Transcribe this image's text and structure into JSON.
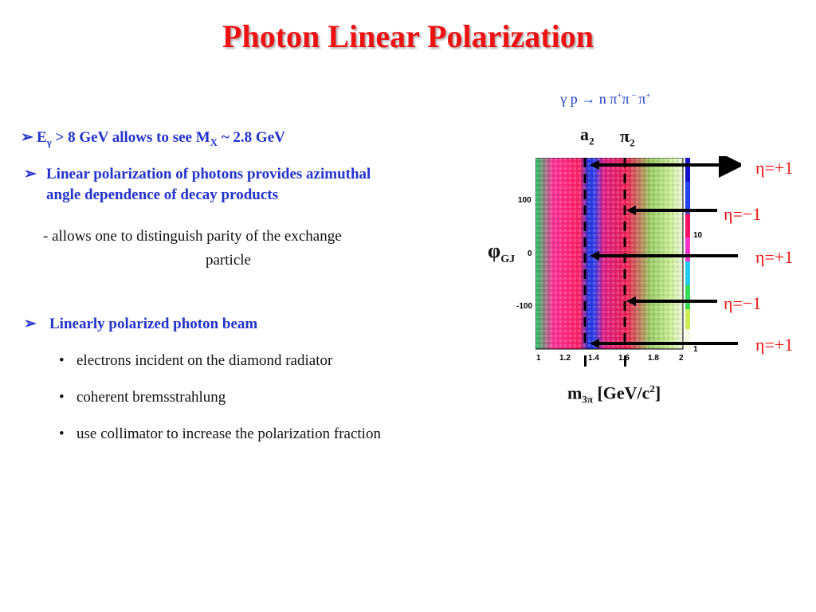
{
  "title": "Photon Linear Polarization",
  "reaction": {
    "text": "γ p  → n π",
    "sup1": "+",
    "mid": "π",
    "sup2": " − ",
    "end": "π",
    "sup3": "+"
  },
  "bullets": {
    "b1": {
      "pre": "E",
      "sub1": "γ",
      "mid": " > 8 GeV allows to see M",
      "sub2": "X",
      "post": " ~ 2.8 GeV"
    },
    "b2_line1": "Linear polarization of photons provides azimuthal",
    "b2_line2": "angle dependence of decay products",
    "b2_sub_line1": "- allows one to distinguish parity of the exchange",
    "b2_sub_line2": "particle",
    "b3": "Linearly polarized photon beam",
    "b3_items": [
      "electrons incident on the diamond radiator",
      "coherent bremsstrahlung",
      "use collimator to increase the polarization fraction"
    ]
  },
  "figure": {
    "resonance_a": "a",
    "resonance_a_sub": "2",
    "resonance_pi": "π",
    "resonance_pi_sub": "2",
    "phi_label": "φ",
    "phi_sub": "GJ",
    "x_label_pre": "m",
    "x_label_sub": "3π",
    "x_label_post": " [GeV/c",
    "x_label_sup": "2",
    "x_label_close": "]",
    "eta_labels": [
      "η=+1",
      "η=−1",
      "η=+1",
      "η=−1",
      "η=+1"
    ],
    "y_ticks": [
      "100",
      "0",
      "-100"
    ],
    "x_ticks": [
      "1",
      "1.2",
      "1.4",
      "1.6",
      "1.8",
      "2"
    ],
    "scale_labels": [
      "10",
      "1"
    ]
  }
}
